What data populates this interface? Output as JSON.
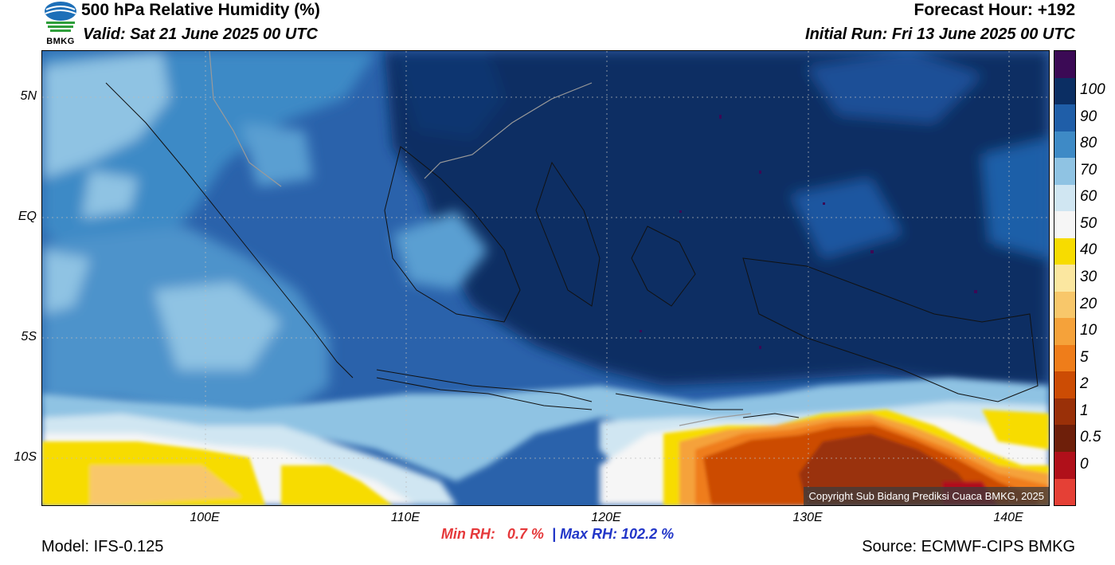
{
  "header": {
    "title": "500 hPa Relative Humidity (%)",
    "valid": "Valid: Sat 21 June 2025 00 UTC",
    "forecast_hour": "Forecast Hour: +192",
    "initial_run": "Initial Run: Fri 13 June 2025 00 UTC",
    "logo_text": "BMKG"
  },
  "axes": {
    "y_labels": [
      "5N",
      "EQ",
      "5S",
      "10S"
    ],
    "x_labels": [
      "100E",
      "110E",
      "120E",
      "130E",
      "140E"
    ]
  },
  "colorbar": {
    "labels": [
      "100",
      "90",
      "80",
      "70",
      "60",
      "50",
      "40",
      "30",
      "20",
      "10",
      "5",
      "2",
      "1",
      "0.5",
      "0"
    ],
    "colors": [
      "#3b0a55",
      "#0b2e63",
      "#1f5ea8",
      "#3e8ac6",
      "#8fc3e3",
      "#d0e6f2",
      "#f6f6f6",
      "#f7dc00",
      "#fbe7a0",
      "#f8c76a",
      "#f5a23a",
      "#ef7d1a",
      "#cc4c04",
      "#9a3008",
      "#6e1f0a",
      "#b0101a",
      "#e54036"
    ]
  },
  "footer": {
    "min_label": "Min RH:",
    "min_value": "0.7 %",
    "separator": "|",
    "max_label": "Max RH:",
    "max_value": "102.2 %",
    "model": "Model: IFS-0.125",
    "source": "Source: ECMWF-CIPS BMKG",
    "copyright": "Copyright Sub Bidang Prediksi Cuaca BMKG, 2025"
  }
}
